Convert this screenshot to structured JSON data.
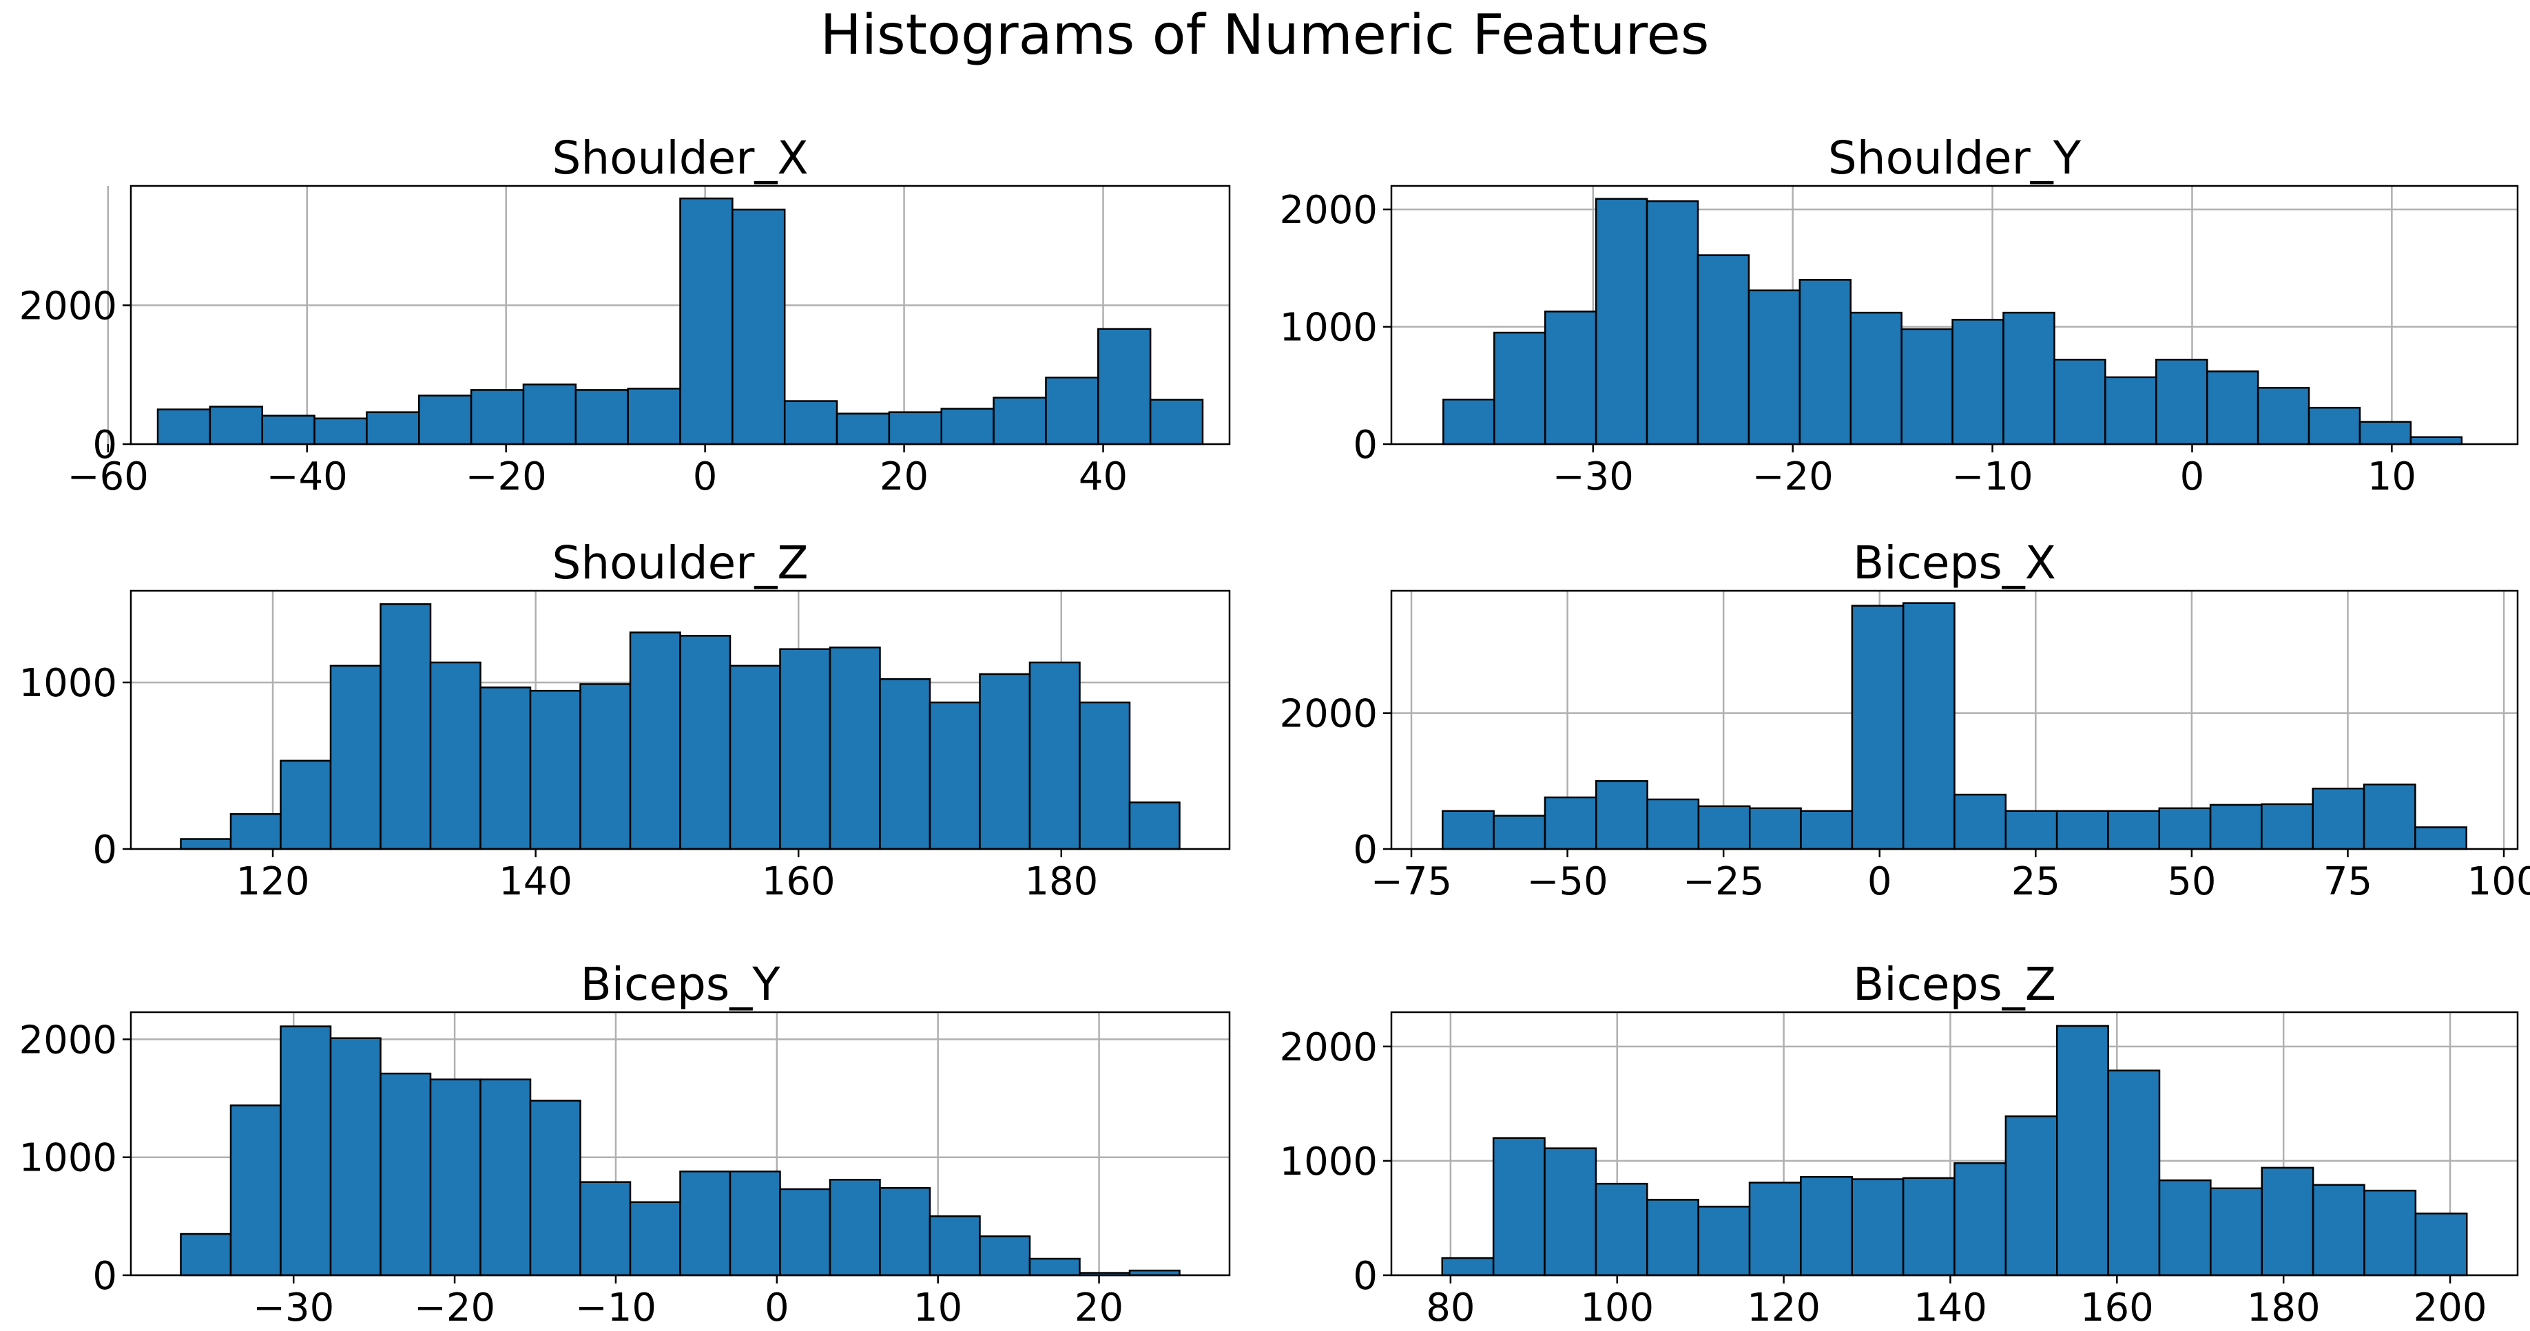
{
  "figure": {
    "title": "Histograms of Numeric Features"
  },
  "colors": {
    "bar": "#1f77b4",
    "edge": "#000000",
    "grid": "#b0b0b0"
  },
  "chart_data": [
    {
      "type": "bar",
      "title": "Shoulder_X",
      "grid": true,
      "bins_start": -55,
      "bin_width": 5.25,
      "values": [
        500,
        540,
        410,
        370,
        460,
        700,
        780,
        860,
        780,
        800,
        3540,
        3380,
        620,
        440,
        460,
        510,
        670,
        960,
        1660,
        640
      ],
      "xlim": [
        -57.7,
        52.7
      ],
      "ylim": [
        0,
        3720
      ],
      "xticks": [
        -60,
        -40,
        -20,
        0,
        20,
        40
      ],
      "xtick_labels": [
        "−60",
        "−40",
        "−20",
        "0",
        "20",
        "40"
      ],
      "yticks": [
        0,
        2000
      ],
      "ytick_labels": [
        "0",
        "2000"
      ]
    },
    {
      "type": "bar",
      "title": "Shoulder_Y",
      "grid": true,
      "bins_start": -37.5,
      "bin_width": 2.55,
      "values": [
        380,
        950,
        1130,
        2090,
        2070,
        1610,
        1310,
        1400,
        1120,
        980,
        1060,
        1120,
        720,
        570,
        720,
        620,
        480,
        310,
        190,
        60
      ],
      "xlim": [
        -40.1,
        16.3
      ],
      "ylim": [
        0,
        2200
      ],
      "xticks": [
        -30,
        -20,
        -10,
        0,
        10
      ],
      "xtick_labels": [
        "−30",
        "−20",
        "−10",
        "0",
        "10"
      ],
      "yticks": [
        0,
        1000,
        2000
      ],
      "ytick_labels": [
        "0",
        "1000",
        "2000"
      ]
    },
    {
      "type": "bar",
      "title": "Shoulder_Z",
      "grid": true,
      "bins_start": 113,
      "bin_width": 3.8,
      "values": [
        60,
        210,
        530,
        1100,
        1470,
        1120,
        970,
        950,
        990,
        1300,
        1280,
        1100,
        1200,
        1210,
        1020,
        880,
        1050,
        1120,
        880,
        280
      ],
      "xlim": [
        109.2,
        192.8
      ],
      "ylim": [
        0,
        1550
      ],
      "xticks": [
        120,
        140,
        160,
        180
      ],
      "xtick_labels": [
        "120",
        "140",
        "160",
        "180"
      ],
      "yticks": [
        0,
        1000
      ],
      "ytick_labels": [
        "0",
        "1000"
      ]
    },
    {
      "type": "bar",
      "title": "Biceps_X",
      "grid": true,
      "bins_start": -70,
      "bin_width": 8.2,
      "values": [
        560,
        490,
        760,
        1000,
        730,
        630,
        600,
        560,
        3580,
        3620,
        800,
        560,
        560,
        560,
        600,
        650,
        660,
        890,
        950,
        320
      ],
      "xlim": [
        -78.2,
        102.2
      ],
      "ylim": [
        0,
        3800
      ],
      "xticks": [
        -75,
        -50,
        -25,
        0,
        25,
        50,
        75,
        100
      ],
      "xtick_labels": [
        "−75",
        "−50",
        "−25",
        "0",
        "25",
        "50",
        "75",
        "100"
      ],
      "yticks": [
        0,
        2000
      ],
      "ytick_labels": [
        "0",
        "2000"
      ]
    },
    {
      "type": "bar",
      "title": "Biceps_Y",
      "grid": true,
      "bins_start": -37,
      "bin_width": 3.1,
      "values": [
        350,
        1440,
        2110,
        2010,
        1710,
        1660,
        1660,
        1480,
        790,
        620,
        880,
        880,
        730,
        810,
        740,
        500,
        330,
        140,
        20,
        40
      ],
      "xlim": [
        -40.1,
        28.1
      ],
      "ylim": [
        0,
        2230
      ],
      "xticks": [
        -30,
        -20,
        -10,
        0,
        10,
        20
      ],
      "xtick_labels": [
        "−30",
        "−20",
        "−10",
        "0",
        "10",
        "20"
      ],
      "yticks": [
        0,
        1000,
        2000
      ],
      "ytick_labels": [
        "0",
        "1000",
        "2000"
      ]
    },
    {
      "type": "bar",
      "title": "Biceps_Z",
      "grid": true,
      "bins_start": 79,
      "bin_width": 6.15,
      "values": [
        150,
        1200,
        1110,
        800,
        660,
        600,
        810,
        860,
        840,
        850,
        980,
        1390,
        2180,
        1790,
        830,
        760,
        940,
        790,
        740,
        540
      ],
      "xlim": [
        72.9,
        208.1
      ],
      "ylim": [
        0,
        2300
      ],
      "xticks": [
        80,
        100,
        120,
        140,
        160,
        180,
        200
      ],
      "xtick_labels": [
        "80",
        "100",
        "120",
        "140",
        "160",
        "180",
        "200"
      ],
      "yticks": [
        0,
        1000,
        2000
      ],
      "ytick_labels": [
        "0",
        "1000",
        "2000"
      ]
    }
  ]
}
